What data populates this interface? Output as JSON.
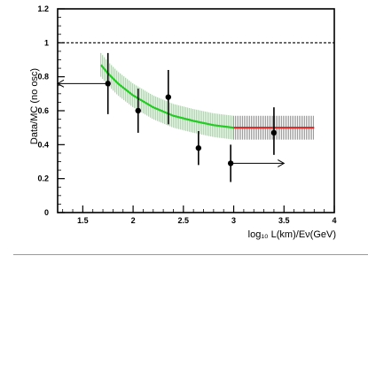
{
  "chart_data": {
    "type": "scatter",
    "title": "",
    "xlabel": "log₁₀ L(km)/Eν(GeV)",
    "ylabel": "Data/MC (no osc)",
    "xlim": [
      1.25,
      4.0
    ],
    "ylim": [
      0,
      1.2
    ],
    "x_ticks": [
      "1.5",
      "2",
      "2.5",
      "3",
      "3.5",
      "4"
    ],
    "y_ticks": [
      "0",
      "0.2",
      "0.4",
      "0.6",
      "0.8",
      "1",
      "1.2"
    ],
    "grid": false,
    "reference_line": {
      "y": 1.0,
      "style": "dashed"
    },
    "points": [
      {
        "x": 1.75,
        "y": 0.76,
        "ylo": 0.58,
        "yhi": 0.94
      },
      {
        "x": 2.05,
        "y": 0.6,
        "ylo": 0.47,
        "yhi": 0.73
      },
      {
        "x": 2.35,
        "y": 0.68,
        "ylo": 0.52,
        "yhi": 0.84
      },
      {
        "x": 2.65,
        "y": 0.38,
        "ylo": 0.28,
        "yhi": 0.48
      },
      {
        "x": 2.97,
        "y": 0.29,
        "ylo": 0.18,
        "yhi": 0.4
      },
      {
        "x": 3.4,
        "y": 0.47,
        "ylo": 0.34,
        "yhi": 0.62
      }
    ],
    "arrows": [
      {
        "from_x": 1.75,
        "to_x": 1.25,
        "y": 0.76
      },
      {
        "from_x": 2.97,
        "to_x": 3.5,
        "y": 0.29
      }
    ],
    "series": [
      {
        "color": "#22cc22",
        "x": [
          1.68,
          1.75,
          1.85,
          2.0,
          2.2,
          2.4,
          2.6,
          2.8,
          3.0
        ],
        "y": [
          0.87,
          0.82,
          0.76,
          0.69,
          0.62,
          0.57,
          0.54,
          0.515,
          0.5
        ],
        "band_halfwidth": 0.07
      },
      {
        "color": "#dd2222",
        "x": [
          3.0,
          3.8
        ],
        "y": [
          0.5,
          0.5
        ],
        "band_halfwidth": 0.07
      }
    ]
  }
}
